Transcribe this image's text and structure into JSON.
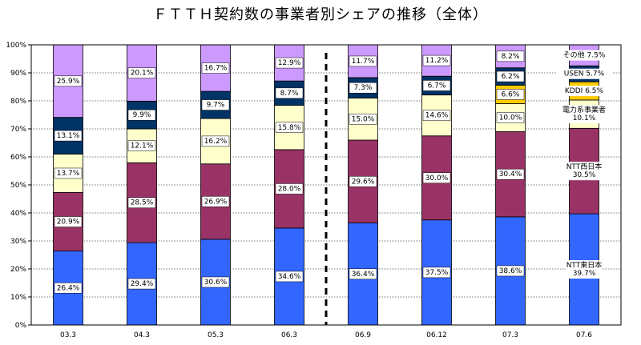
{
  "chart_data": {
    "type": "bar",
    "stacked": true,
    "title": "ＦＴＴＨ契約数の事業者別シェアの推移（全体）",
    "xlabel": "",
    "ylabel": "",
    "ylim": [
      0,
      100
    ],
    "yticks": [
      "0%",
      "10%",
      "20%",
      "30%",
      "40%",
      "50%",
      "60%",
      "70%",
      "80%",
      "90%",
      "100%"
    ],
    "categories": [
      "03.3",
      "04.3",
      "05.3",
      "06.3",
      "06.9",
      "06.12",
      "07.3",
      "07.6"
    ],
    "series": [
      {
        "name": "NTT東日本",
        "color": "#3366ff",
        "values": [
          26.4,
          29.4,
          30.6,
          34.6,
          36.4,
          37.5,
          38.6,
          39.7
        ]
      },
      {
        "name": "NTT西日本",
        "color": "#993366",
        "values": [
          20.9,
          28.5,
          26.9,
          28.0,
          29.6,
          30.0,
          30.4,
          30.5
        ]
      },
      {
        "name": "電力系事業者",
        "color": "#ffffcc",
        "values": [
          13.7,
          12.1,
          16.2,
          15.8,
          15.0,
          14.6,
          10.0,
          10.1
        ]
      },
      {
        "name": "KDDI",
        "color": "#ffcc00",
        "values": [
          0,
          0,
          0,
          0,
          0,
          0,
          6.6,
          6.5
        ]
      },
      {
        "name": "USEN",
        "color": "#003366",
        "values": [
          13.1,
          9.9,
          9.7,
          8.7,
          7.3,
          6.7,
          6.2,
          5.7
        ]
      },
      {
        "name": "その他",
        "color": "#cc99ff",
        "values": [
          25.9,
          20.1,
          16.7,
          12.9,
          11.7,
          11.2,
          8.2,
          7.5
        ]
      }
    ],
    "labels": [
      [
        "26.4%",
        "20.9%",
        "13.7%",
        "",
        "13.1%",
        "25.9%"
      ],
      [
        "29.4%",
        "28.5%",
        "12.1%",
        "",
        "9.9%",
        "20.1%"
      ],
      [
        "30.6%",
        "26.9%",
        "16.2%",
        "",
        "9.7%",
        "16.7%"
      ],
      [
        "34.6%",
        "28.0%",
        "15.8%",
        "",
        "8.7%",
        "12.9%"
      ],
      [
        "36.4%",
        "29.6%",
        "15.0%",
        "",
        "7.3%",
        "11.7%"
      ],
      [
        "37.5%",
        "30.0%",
        "14.6%",
        "",
        "6.7%",
        "11.2%"
      ],
      [
        "38.6%",
        "30.4%",
        "10.0%",
        "6.6%",
        "6.2%",
        "8.2%"
      ],
      [
        "NTT東日本\n39.7%",
        "NTT西日本\n30.5%",
        "電力系事業者\n10.1%",
        "KDDI  6.5%",
        "USEN  5.7%",
        "その他  7.5%"
      ]
    ],
    "divider_after_category": "06.3",
    "grid": true
  }
}
